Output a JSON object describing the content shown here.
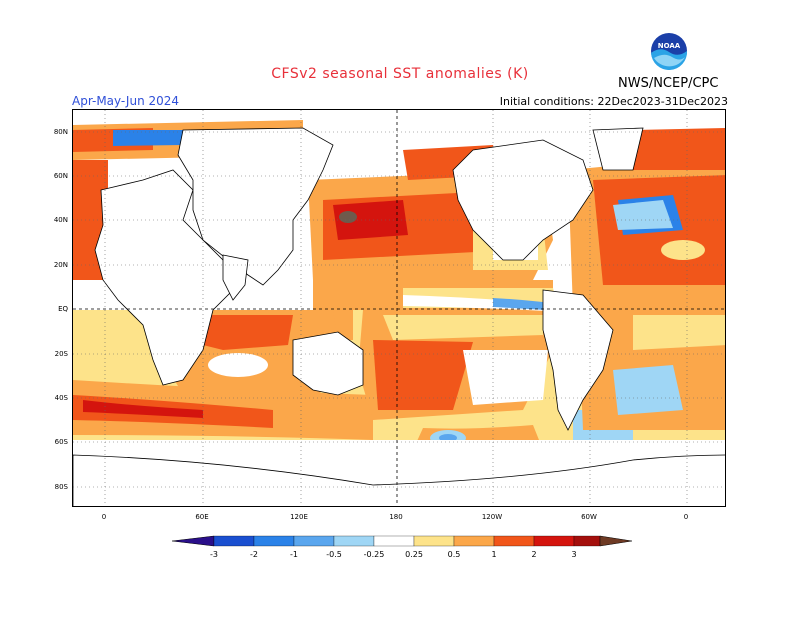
{
  "header": {
    "title": "CFSv2 seasonal SST anomalies (K)",
    "season": "Apr-May-Jun 2024",
    "initial_conditions": "Initial conditions: 22Dec2023-31Dec2023",
    "org": "NWS/NCEP/CPC",
    "logo_text": "NOAA"
  },
  "map": {
    "lat_labels": [
      "80N",
      "60N",
      "40N",
      "20N",
      "EQ",
      "20S",
      "40S",
      "60S",
      "80S"
    ],
    "lon_labels": [
      "0",
      "60E",
      "120E",
      "180",
      "120W",
      "60W",
      "0"
    ],
    "colors": {
      "land": "#ffffff",
      "coast": "#000000",
      "grid": "#000000"
    }
  },
  "colorbar": {
    "labels": [
      "-3",
      "-2",
      "-1",
      "-0.5",
      "-0.25",
      "0.25",
      "0.5",
      "1",
      "2",
      "3"
    ],
    "colors": [
      "#2a0f8a",
      "#1a4fd0",
      "#2b82e8",
      "#5aa6ee",
      "#9fd6f5",
      "#ffffff",
      "#fde38a",
      "#fba74a",
      "#f1561a",
      "#d4140e",
      "#a40f0c",
      "#6e3a24"
    ]
  }
}
